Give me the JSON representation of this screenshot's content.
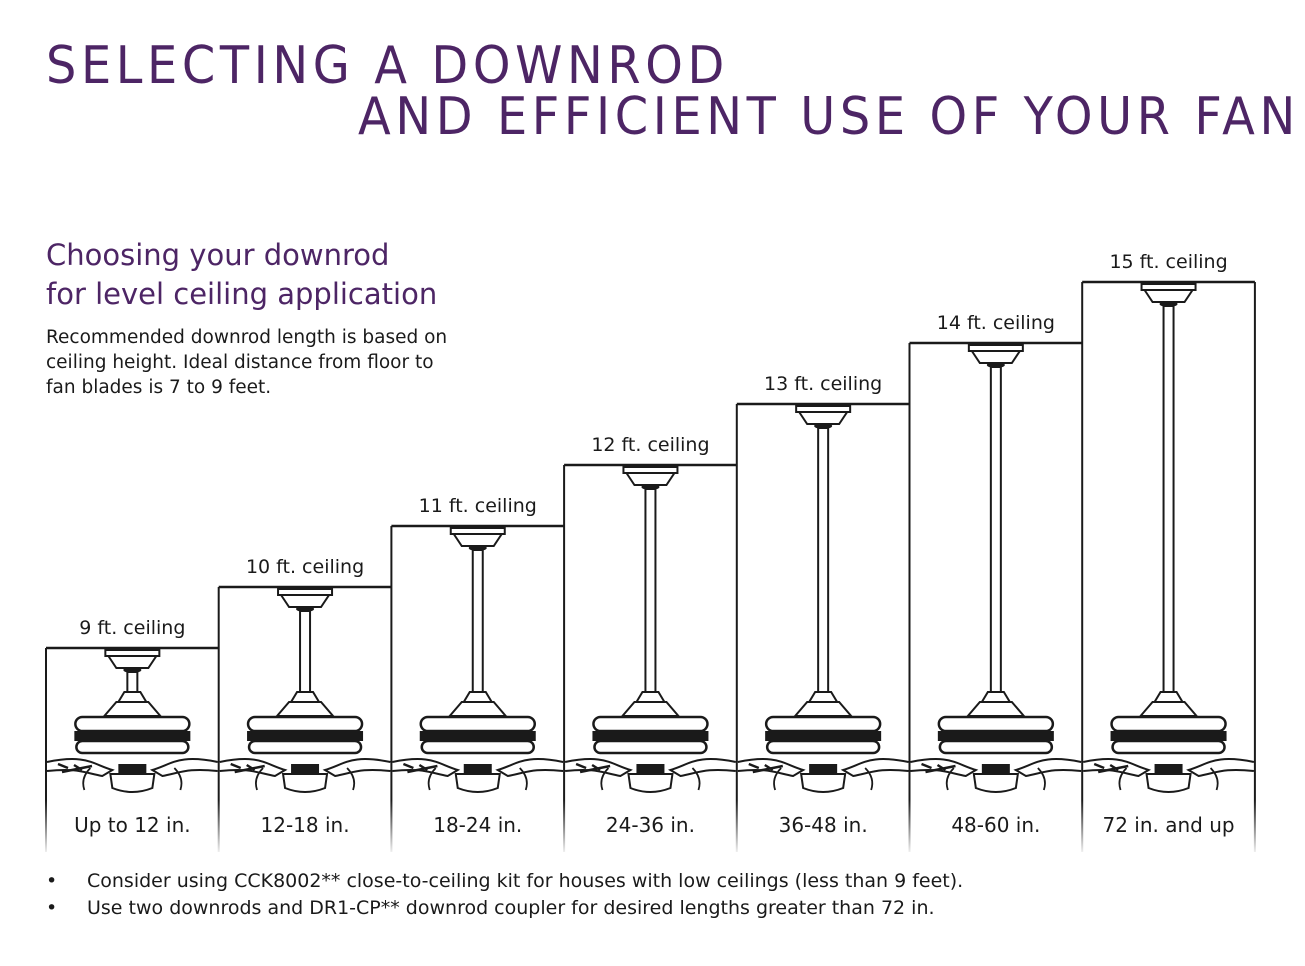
{
  "title": {
    "line1": "SELECTING A DOWNROD",
    "line2": "AND EFFICIENT USE OF YOUR FAN"
  },
  "section": {
    "heading_line1": "Choosing your downrod",
    "heading_line2": "for level ceiling application",
    "description_lines": [
      "Recommended downrod length is based on",
      "ceiling height.  Ideal distance from floor to",
      "fan blades is 7 to 9 feet."
    ]
  },
  "columns": [
    {
      "ceiling": "9 ft. ceiling",
      "downrod": "Up to 12 in.",
      "ceiling_ft": 9
    },
    {
      "ceiling": "10 ft. ceiling",
      "downrod": "12-18 in.",
      "ceiling_ft": 10
    },
    {
      "ceiling": "11 ft. ceiling",
      "downrod": "18-24 in.",
      "ceiling_ft": 11
    },
    {
      "ceiling": "12 ft. ceiling",
      "downrod": "24-36 in.",
      "ceiling_ft": 12
    },
    {
      "ceiling": "13 ft. ceiling",
      "downrod": "36-48 in.",
      "ceiling_ft": 13
    },
    {
      "ceiling": "14 ft. ceiling",
      "downrod": "48-60 in.",
      "ceiling_ft": 14
    },
    {
      "ceiling": "15 ft. ceiling",
      "downrod": "72 in. and up",
      "ceiling_ft": 15
    }
  ],
  "bullets": [
    "Consider using CCK8002** close-to-ceiling kit for houses with low ceilings (less than 9 feet).",
    "Use two downrods and DR1-CP** downrod coupler for desired lengths greater than 72 in."
  ],
  "bullet_symbol": "•",
  "colors": {
    "title": "#4d2565",
    "line": "#1a1a1a"
  }
}
